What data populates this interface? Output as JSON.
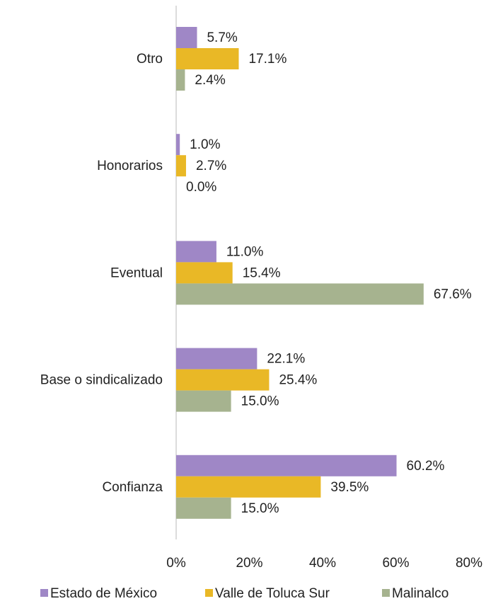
{
  "chart_data": {
    "type": "barh",
    "categories": [
      "Otro",
      "Honorarios",
      "Eventual",
      "Base o sindicalizado",
      "Confianza"
    ],
    "series": [
      {
        "name": "Estado de México",
        "color": "#9f87c6",
        "values": [
          5.7,
          1.0,
          11.0,
          22.1,
          60.2
        ],
        "value_labels": [
          "5.7%",
          "1.0%",
          "11.0%",
          "22.1%",
          "60.2%"
        ]
      },
      {
        "name": "Valle de Toluca Sur",
        "color": "#e9b826",
        "values": [
          17.1,
          2.7,
          15.4,
          25.4,
          39.5
        ],
        "value_labels": [
          "17.1%",
          "2.7%",
          "15.4%",
          "25.4%",
          "39.5%"
        ]
      },
      {
        "name": "Malinalco",
        "color": "#a6b38f",
        "values": [
          2.4,
          0.0,
          67.6,
          15.0,
          15.0
        ],
        "value_labels": [
          "2.4%",
          "0.0%",
          "67.6%",
          "15.0%",
          "15.0%"
        ]
      }
    ],
    "xlim": [
      0,
      80
    ],
    "xticks": [
      {
        "value": 0,
        "label": "0%"
      },
      {
        "value": 20,
        "label": "20%"
      },
      {
        "value": 40,
        "label": "40%"
      },
      {
        "value": 60,
        "label": "60%"
      },
      {
        "value": 80,
        "label": "80%"
      }
    ],
    "grid": false,
    "legend": "bottom"
  }
}
